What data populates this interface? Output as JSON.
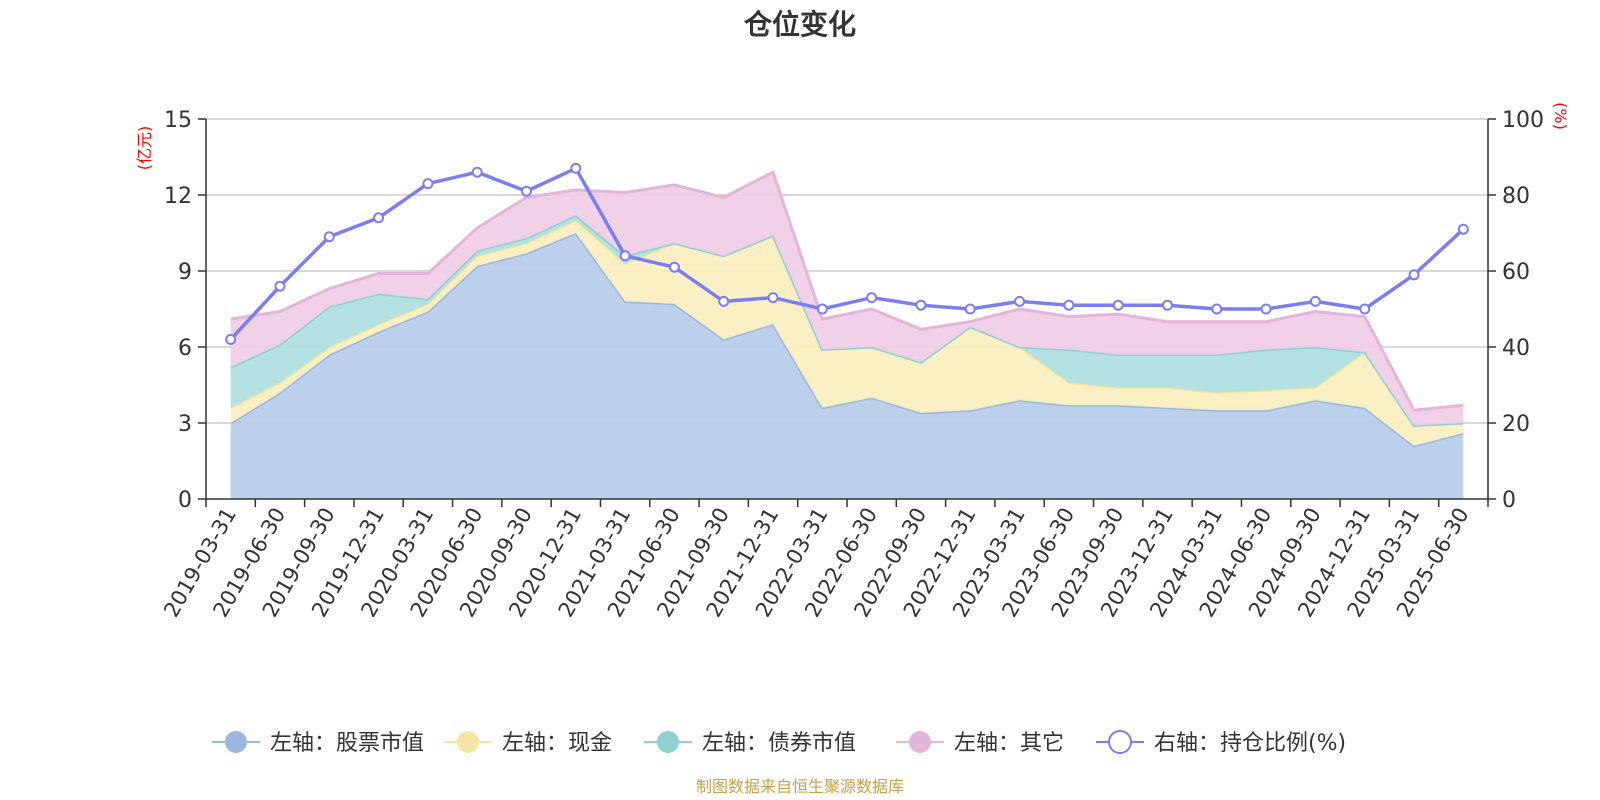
{
  "chart_data": {
    "type": "area",
    "title": "仓位变化",
    "left_unit": "(亿元)",
    "right_unit": "(%)",
    "left_ylim": [
      0,
      15
    ],
    "left_yticks": [
      0,
      3,
      6,
      9,
      12,
      15
    ],
    "right_ylim": [
      0,
      100
    ],
    "right_yticks": [
      0,
      20,
      40,
      60,
      80,
      100
    ],
    "grid": true,
    "legend_position": "bottom",
    "source": "制图数据来自恒生聚源数据库",
    "categories": [
      "2019-03-31",
      "2019-06-30",
      "2019-09-30",
      "2019-12-31",
      "2020-03-31",
      "2020-06-30",
      "2020-09-30",
      "2020-12-31",
      "2021-03-31",
      "2021-06-30",
      "2021-09-30",
      "2021-12-31",
      "2022-03-31",
      "2022-06-30",
      "2022-09-30",
      "2022-12-31",
      "2023-03-31",
      "2023-06-30",
      "2023-09-30",
      "2023-12-31",
      "2024-03-31",
      "2024-06-30",
      "2024-09-30",
      "2024-12-31",
      "2025-03-31",
      "2025-06-30"
    ],
    "series": [
      {
        "name": "左轴：股票市值",
        "axis": "left",
        "type": "stacked-area",
        "color": "#9bb7e0",
        "fill": "#b8cdea",
        "values": [
          3.0,
          4.2,
          5.7,
          6.6,
          7.4,
          9.2,
          9.7,
          10.5,
          7.8,
          7.7,
          6.3,
          6.9,
          3.6,
          4.0,
          3.4,
          3.5,
          3.9,
          3.7,
          3.7,
          3.6,
          3.5,
          3.5,
          3.9,
          3.6,
          2.1,
          2.6
        ]
      },
      {
        "name": "左轴：现金",
        "axis": "left",
        "type": "stacked-area",
        "color": "#f5e5a3",
        "fill": "#faefc1",
        "values": [
          0.6,
          0.4,
          0.3,
          0.3,
          0.3,
          0.4,
          0.4,
          0.5,
          1.5,
          2.4,
          3.3,
          3.5,
          2.3,
          2.0,
          2.0,
          3.3,
          2.1,
          0.9,
          0.7,
          0.8,
          0.7,
          0.8,
          0.5,
          2.2,
          0.8,
          0.4
        ]
      },
      {
        "name": "左轴：债券市值",
        "axis": "left",
        "type": "stacked-area",
        "color": "#8fd0d0",
        "fill": "#b0e0e0",
        "values": [
          1.6,
          1.5,
          1.6,
          1.2,
          0.2,
          0.2,
          0.2,
          0.2,
          0.3,
          0.0,
          0.0,
          0.0,
          0.0,
          0.0,
          0.0,
          0.0,
          0.0,
          1.3,
          1.3,
          1.3,
          1.5,
          1.6,
          1.6,
          0.0,
          0.0,
          0.0
        ]
      },
      {
        "name": "左轴：其它",
        "axis": "left",
        "type": "stacked-area",
        "color": "#e4b4da",
        "fill": "#efcfe7",
        "values": [
          1.9,
          1.3,
          0.7,
          0.8,
          1.0,
          0.9,
          1.6,
          1.0,
          2.5,
          2.3,
          2.3,
          2.5,
          1.2,
          1.5,
          1.3,
          0.2,
          1.5,
          1.3,
          1.6,
          1.3,
          1.3,
          1.1,
          1.4,
          1.4,
          0.6,
          0.7
        ]
      },
      {
        "name": "右轴：持仓比例(%)",
        "axis": "right",
        "type": "line",
        "color": "#7b7ef0",
        "values": [
          42,
          56,
          69,
          74,
          83,
          86,
          81,
          87,
          64,
          61,
          52,
          53,
          50,
          53,
          51,
          50,
          52,
          51,
          51,
          51,
          50,
          50,
          52,
          50,
          59,
          71
        ]
      }
    ]
  }
}
